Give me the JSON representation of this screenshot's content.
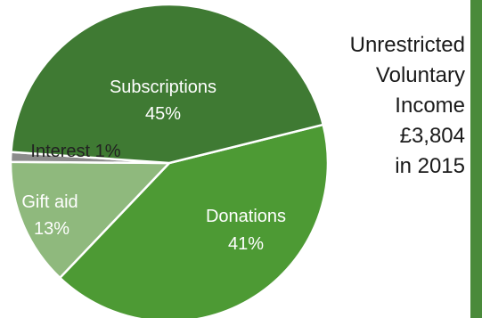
{
  "chart_data": {
    "type": "pie",
    "slices": [
      {
        "label": "Subscriptions",
        "value": 45,
        "value_label": "45%",
        "color": "#3f7a33"
      },
      {
        "label": "Donations",
        "value": 41,
        "value_label": "41%",
        "color": "#4d9a34"
      },
      {
        "label": "Gift aid",
        "value": 13,
        "value_label": "13%",
        "color": "#8fb97d"
      },
      {
        "label": "Interest",
        "value": 1,
        "value_label": "1%",
        "color": "#8c8c8c"
      }
    ]
  },
  "caption": {
    "lines": [
      "Unrestricted",
      "Voluntary",
      "Income",
      "£3,804",
      "in 2015"
    ]
  },
  "side_bar": {
    "color": "#4a8a3a"
  }
}
